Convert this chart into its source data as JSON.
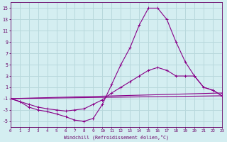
{
  "xlabel": "Windchill (Refroidissement éolien,°C)",
  "background_color": "#d4eef1",
  "grid_color": "#b8d8dc",
  "line_color": "#880088",
  "x_ticks": [
    0,
    1,
    2,
    3,
    4,
    5,
    6,
    7,
    8,
    9,
    10,
    11,
    12,
    13,
    14,
    15,
    16,
    17,
    18,
    19,
    20,
    21,
    22,
    23
  ],
  "y_ticks": [
    -5,
    -3,
    -1,
    1,
    3,
    5,
    7,
    9,
    11,
    13,
    15
  ],
  "xlim": [
    0,
    23
  ],
  "ylim": [
    -6,
    16
  ],
  "lines": [
    {
      "x": [
        0,
        1,
        2,
        3,
        4,
        5,
        6,
        7,
        8,
        9,
        10,
        11,
        12,
        13,
        14,
        15,
        16,
        17,
        18,
        19,
        20,
        21,
        22,
        23
      ],
      "y": [
        -1,
        -1.5,
        -2.5,
        -3,
        -3.3,
        -3.7,
        -4.2,
        -4.8,
        -5,
        -4.5,
        -2,
        1.5,
        5,
        8,
        12,
        15,
        15,
        13,
        9,
        5.5,
        3,
        1,
        0.5,
        -0.5
      ]
    },
    {
      "x": [
        0,
        1,
        2,
        3,
        4,
        5,
        6,
        7,
        8,
        9,
        10,
        11,
        12,
        13,
        14,
        15,
        16,
        17,
        18,
        19,
        20,
        21,
        22,
        23
      ],
      "y": [
        -1,
        -1.5,
        -2,
        -2.5,
        -2.8,
        -3,
        -3.2,
        -3,
        -2.8,
        -2,
        -1.2,
        0,
        1,
        2,
        3,
        4,
        4.5,
        4,
        3,
        3,
        3,
        1,
        0.5,
        -0.5
      ]
    },
    {
      "x": [
        0,
        23
      ],
      "y": [
        -1,
        0
      ]
    },
    {
      "x": [
        0,
        23
      ],
      "y": [
        -1,
        -0.5
      ]
    }
  ]
}
